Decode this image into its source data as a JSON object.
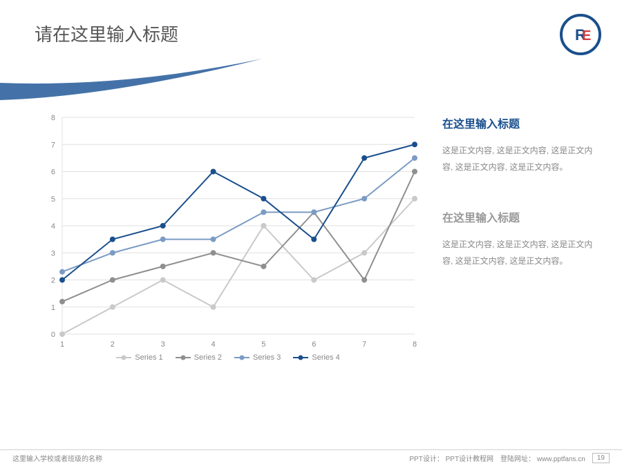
{
  "slide": {
    "title": "请在这里输入标题",
    "page_number": "19"
  },
  "logo": {
    "ring_color": "#1a4f8c",
    "inner_bg": "#ffffff",
    "letter_R_color": "#1a4f8c",
    "letter_E_color": "#d13a3a"
  },
  "swoosh_color": "#4472a8",
  "chart": {
    "type": "line",
    "x_categories": [
      "1",
      "2",
      "3",
      "4",
      "5",
      "6",
      "7",
      "8"
    ],
    "y_ticks": [
      0,
      1,
      2,
      3,
      4,
      5,
      6,
      7,
      8
    ],
    "ylim": [
      0,
      8
    ],
    "grid_color": "#e0e0e0",
    "axis_label_color": "#888888",
    "axis_label_fontsize": 11,
    "line_width": 2,
    "marker_radius": 4,
    "series": [
      {
        "name": "Series 1",
        "color": "#c9c9c9",
        "values": [
          0.0,
          1.0,
          2.0,
          1.0,
          4.0,
          2.0,
          3.0,
          5.0
        ]
      },
      {
        "name": "Series 2",
        "color": "#8f8f8f",
        "values": [
          1.2,
          2.0,
          2.5,
          3.0,
          2.5,
          4.5,
          2.0,
          6.0
        ]
      },
      {
        "name": "Series 3",
        "color": "#7a9bc4",
        "values": [
          2.3,
          3.0,
          3.5,
          3.5,
          4.5,
          4.5,
          5.0,
          6.5
        ]
      },
      {
        "name": "Series 4",
        "color": "#1a4f8c",
        "values": [
          2.0,
          3.5,
          4.0,
          6.0,
          5.0,
          3.5,
          6.5,
          7.0
        ]
      }
    ]
  },
  "sections": [
    {
      "title": "在这里输入标题",
      "title_color": "#1a4f8c",
      "body": "这是正文内容, 这是正文内容, 这是正文内容, 这是正文内容, 这是正文内容。"
    },
    {
      "title": "在这里输入标题",
      "title_color": "#999999",
      "body": "这是正文内容, 这是正文内容, 这是正文内容, 这是正文内容, 这是正文内容。"
    }
  ],
  "footer": {
    "left": "这里输入学校或者班级的名称",
    "right": "PPT设计： PPT设计教程网　登陆网址： www.pptfans.cn"
  }
}
